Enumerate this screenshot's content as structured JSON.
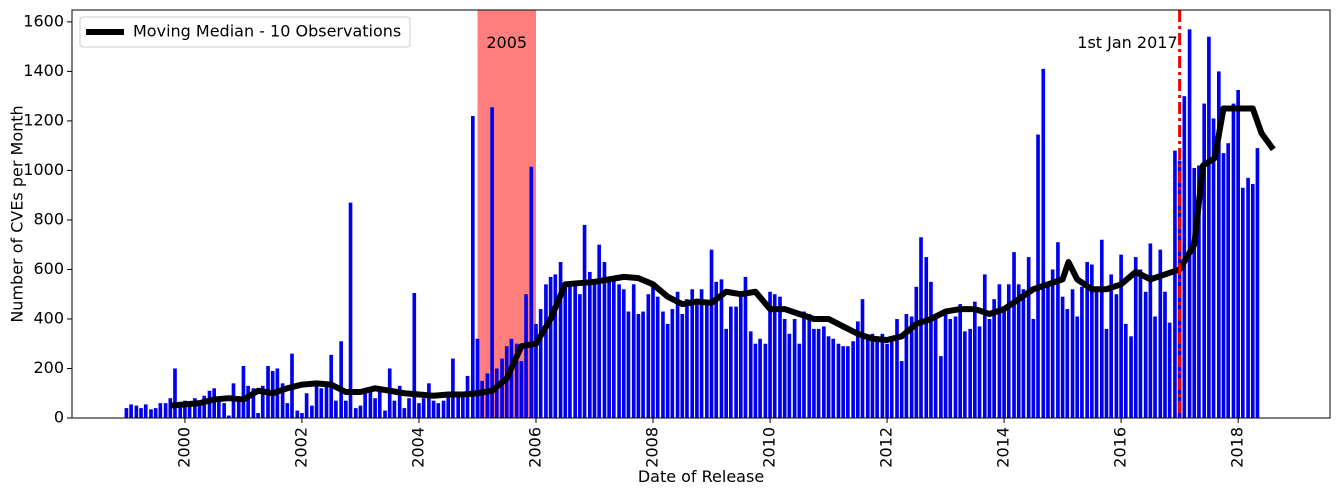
{
  "chart_data": {
    "type": "bar_line",
    "xlabel": "Date of Release",
    "ylabel": "Number of CVEs per Month",
    "xlim": [
      1998.07,
      2019.57
    ],
    "ylim": [
      0,
      1648
    ],
    "xticks": [
      2000,
      2002,
      2004,
      2006,
      2008,
      2010,
      2012,
      2014,
      2016,
      2018
    ],
    "yticks": [
      0,
      200,
      400,
      600,
      800,
      1000,
      1200,
      1400,
      1600
    ],
    "legend": "upper left",
    "series": [
      {
        "type": "bar",
        "color": "#0000ee",
        "x": [
          1999.0,
          1999.08,
          1999.17,
          1999.25,
          1999.33,
          1999.42,
          1999.5,
          1999.58,
          1999.67,
          1999.75,
          1999.83,
          1999.92,
          2000.0,
          2000.08,
          2000.17,
          2000.25,
          2000.33,
          2000.42,
          2000.5,
          2000.58,
          2000.67,
          2000.75,
          2000.83,
          2000.92,
          2001.0,
          2001.08,
          2001.17,
          2001.25,
          2001.33,
          2001.42,
          2001.5,
          2001.58,
          2001.67,
          2001.75,
          2001.83,
          2001.92,
          2002.0,
          2002.08,
          2002.17,
          2002.25,
          2002.33,
          2002.42,
          2002.5,
          2002.58,
          2002.67,
          2002.75,
          2002.83,
          2002.92,
          2003.0,
          2003.08,
          2003.17,
          2003.25,
          2003.33,
          2003.42,
          2003.5,
          2003.58,
          2003.67,
          2003.75,
          2003.83,
          2003.92,
          2004.0,
          2004.08,
          2004.17,
          2004.25,
          2004.33,
          2004.42,
          2004.5,
          2004.58,
          2004.67,
          2004.75,
          2004.83,
          2004.92,
          2005.0,
          2005.08,
          2005.17,
          2005.25,
          2005.33,
          2005.42,
          2005.5,
          2005.58,
          2005.67,
          2005.75,
          2005.83,
          2005.92,
          2006.0,
          2006.08,
          2006.17,
          2006.25,
          2006.33,
          2006.42,
          2006.5,
          2006.58,
          2006.67,
          2006.75,
          2006.83,
          2006.92,
          2007.0,
          2007.08,
          2007.17,
          2007.25,
          2007.33,
          2007.42,
          2007.5,
          2007.58,
          2007.67,
          2007.75,
          2007.83,
          2007.92,
          2008.0,
          2008.08,
          2008.17,
          2008.25,
          2008.33,
          2008.42,
          2008.5,
          2008.58,
          2008.67,
          2008.75,
          2008.83,
          2008.92,
          2009.0,
          2009.08,
          2009.17,
          2009.25,
          2009.33,
          2009.42,
          2009.5,
          2009.58,
          2009.67,
          2009.75,
          2009.83,
          2009.92,
          2010.0,
          2010.08,
          2010.17,
          2010.25,
          2010.33,
          2010.42,
          2010.5,
          2010.58,
          2010.67,
          2010.75,
          2010.83,
          2010.92,
          2011.0,
          2011.08,
          2011.17,
          2011.25,
          2011.33,
          2011.42,
          2011.5,
          2011.58,
          2011.67,
          2011.75,
          2011.83,
          2011.92,
          2012.0,
          2012.08,
          2012.17,
          2012.25,
          2012.33,
          2012.42,
          2012.5,
          2012.58,
          2012.67,
          2012.75,
          2012.83,
          2012.92,
          2013.0,
          2013.08,
          2013.17,
          2013.25,
          2013.33,
          2013.42,
          2013.5,
          2013.58,
          2013.67,
          2013.75,
          2013.83,
          2013.92,
          2014.0,
          2014.08,
          2014.17,
          2014.25,
          2014.33,
          2014.42,
          2014.5,
          2014.58,
          2014.67,
          2014.75,
          2014.83,
          2014.92,
          2015.0,
          2015.08,
          2015.17,
          2015.25,
          2015.33,
          2015.42,
          2015.5,
          2015.58,
          2015.67,
          2015.75,
          2015.83,
          2015.92,
          2016.0,
          2016.08,
          2016.17,
          2016.25,
          2016.33,
          2016.42,
          2016.5,
          2016.58,
          2016.67,
          2016.75,
          2016.83,
          2016.92,
          2017.0,
          2017.08,
          2017.17,
          2017.25,
          2017.33,
          2017.42,
          2017.5,
          2017.58,
          2017.67,
          2017.75,
          2017.83,
          2017.92,
          2018.0,
          2018.08,
          2018.17,
          2018.25,
          2018.33
        ],
        "values": [
          40,
          55,
          50,
          40,
          55,
          35,
          40,
          60,
          60,
          80,
          200,
          65,
          70,
          65,
          80,
          60,
          90,
          110,
          120,
          80,
          60,
          10,
          140,
          80,
          210,
          130,
          120,
          20,
          130,
          210,
          190,
          200,
          140,
          60,
          260,
          30,
          20,
          100,
          50,
          150,
          120,
          140,
          255,
          70,
          310,
          70,
          870,
          40,
          50,
          120,
          110,
          80,
          120,
          30,
          200,
          70,
          130,
          40,
          80,
          505,
          60,
          80,
          140,
          70,
          60,
          70,
          90,
          240,
          90,
          100,
          170,
          1220,
          320,
          150,
          180,
          1255,
          200,
          240,
          290,
          320,
          300,
          230,
          500,
          1015,
          380,
          440,
          540,
          570,
          580,
          630,
          540,
          540,
          540,
          500,
          780,
          590,
          540,
          700,
          630,
          570,
          560,
          540,
          520,
          430,
          540,
          420,
          430,
          500,
          530,
          490,
          430,
          380,
          440,
          510,
          420,
          480,
          520,
          460,
          520,
          460,
          680,
          550,
          560,
          360,
          450,
          450,
          490,
          570,
          350,
          300,
          320,
          300,
          510,
          500,
          490,
          400,
          340,
          400,
          300,
          430,
          420,
          360,
          360,
          370,
          330,
          320,
          300,
          290,
          290,
          310,
          390,
          480,
          320,
          340,
          310,
          340,
          300,
          330,
          400,
          230,
          420,
          410,
          530,
          730,
          650,
          550,
          420,
          250,
          430,
          400,
          410,
          460,
          350,
          360,
          470,
          370,
          580,
          400,
          480,
          540,
          450,
          540,
          670,
          540,
          520,
          650,
          400,
          1145,
          1410,
          540,
          600,
          710,
          490,
          440,
          520,
          410,
          530,
          630,
          620,
          510,
          720,
          360,
          580,
          500,
          660,
          380,
          330,
          650,
          600,
          510,
          705,
          410,
          680,
          510,
          385,
          1080,
          1040,
          1300,
          1570,
          1010,
          1020,
          1270,
          1540,
          1210,
          1400,
          1070,
          1110,
          1270,
          1325,
          930,
          970,
          945,
          1090
        ]
      },
      {
        "type": "line",
        "name": "Moving Median - 10 Observations",
        "color": "#000000",
        "x": [
          1999.75,
          2000.0,
          2000.25,
          2000.5,
          2000.75,
          2001.0,
          2001.25,
          2001.5,
          2001.75,
          2002.0,
          2002.25,
          2002.5,
          2002.75,
          2003.0,
          2003.25,
          2003.5,
          2003.75,
          2004.0,
          2004.25,
          2004.5,
          2004.75,
          2005.0,
          2005.25,
          2005.5,
          2005.75,
          2006.0,
          2006.25,
          2006.5,
          2006.75,
          2007.0,
          2007.25,
          2007.5,
          2007.75,
          2008.0,
          2008.25,
          2008.5,
          2008.75,
          2009.0,
          2009.25,
          2009.5,
          2009.75,
          2010.0,
          2010.25,
          2010.5,
          2010.75,
          2011.0,
          2011.25,
          2011.5,
          2011.75,
          2012.0,
          2012.25,
          2012.5,
          2012.75,
          2013.0,
          2013.25,
          2013.5,
          2013.75,
          2014.0,
          2014.25,
          2014.5,
          2014.75,
          2015.0,
          2015.1,
          2015.25,
          2015.5,
          2015.75,
          2016.0,
          2016.25,
          2016.5,
          2016.75,
          2017.0,
          2017.25,
          2017.4,
          2017.6,
          2017.75,
          2018.0,
          2018.25,
          2018.4,
          2018.6
        ],
        "values": [
          50,
          55,
          60,
          75,
          80,
          75,
          110,
          100,
          120,
          135,
          140,
          135,
          105,
          105,
          120,
          110,
          100,
          95,
          90,
          95,
          95,
          100,
          110,
          160,
          290,
          300,
          400,
          540,
          545,
          550,
          560,
          570,
          565,
          540,
          490,
          460,
          470,
          465,
          510,
          500,
          510,
          440,
          440,
          420,
          400,
          400,
          370,
          340,
          320,
          315,
          330,
          380,
          400,
          430,
          440,
          440,
          420,
          440,
          480,
          520,
          540,
          560,
          630,
          560,
          520,
          520,
          540,
          590,
          560,
          580,
          600,
          700,
          1020,
          1050,
          1250,
          1250,
          1250,
          1150,
          1085
        ]
      }
    ],
    "span": {
      "x": [
        2005,
        2006
      ],
      "color": "#ff0000",
      "label": "2005"
    },
    "vline": {
      "x": 2017,
      "color": "#ee0000",
      "label": "1st Jan 2017"
    }
  }
}
